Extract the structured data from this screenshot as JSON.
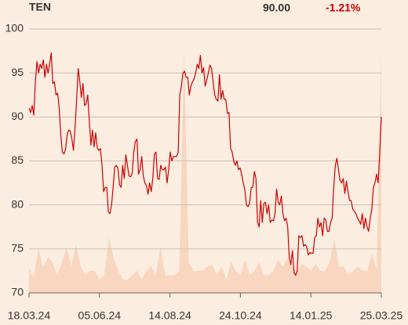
{
  "header": {
    "ticker": "TEN",
    "last": "90.00",
    "change": "-1.21%"
  },
  "chart_data": {
    "type": "line",
    "x_labels": [
      "18.03.24",
      "05.06.24",
      "14.08.24",
      "24.10.24",
      "14.01.25",
      "25.03.25"
    ],
    "ylim": [
      70,
      100
    ],
    "yticks": [
      70,
      75,
      80,
      85,
      90,
      95,
      100
    ],
    "grid": true,
    "series": [
      {
        "name": "Price",
        "color": "#cc0000",
        "values": [
          91,
          90.5,
          91.3,
          90.2,
          94,
          96.3,
          95,
          96,
          95.5,
          96.5,
          94.5,
          96,
          95,
          96,
          97.3,
          93.8,
          94,
          92.5,
          92.7,
          91,
          88,
          86,
          85.8,
          86.3,
          88,
          88.5,
          88.4,
          87.5,
          86.2,
          88.8,
          92,
          95.5,
          94,
          92.2,
          93.8,
          91.3,
          91.5,
          92.5,
          89.5,
          86.8,
          88.5,
          86.6,
          88.2,
          86.5,
          86.2,
          86.4,
          84.5,
          81.5,
          82,
          82,
          79.2,
          79,
          80,
          82,
          84.3,
          84.5,
          84.2,
          82.3,
          82,
          84.5,
          83,
          85.7,
          84.5,
          83.3,
          83.2,
          83.6,
          86,
          87.2,
          87.5,
          83.5,
          84,
          85.5,
          83.3,
          82.5,
          82.2,
          81.2,
          82.5,
          81.5,
          83,
          85.8,
          86,
          83,
          82.9,
          84.5,
          84,
          84,
          84.3,
          82.5,
          84,
          86,
          85,
          85.5,
          85.5,
          85.5,
          86,
          92.5,
          93.5,
          95,
          95.2,
          94.5,
          94.5,
          92.5,
          93.5,
          94,
          94.3,
          95,
          96,
          95.5,
          97,
          95,
          95.6,
          93.5,
          94.2,
          95,
          95.9,
          95.5,
          94,
          92.5,
          92,
          91.8,
          94.8,
          92,
          93,
          92,
          92,
          90.4,
          90.5,
          86.5,
          86,
          85,
          84.5,
          85,
          84,
          84.2,
          83.5,
          82.5,
          81.7,
          80,
          79.8,
          80.2,
          82,
          82,
          83.8,
          83,
          78,
          77.5,
          80.5,
          78,
          80.2,
          80.3,
          79,
          80,
          78,
          78.3,
          78.2,
          79,
          81.8,
          80.3,
          80,
          81,
          79,
          78.2,
          78.5,
          77.5,
          74,
          73.2,
          74.8,
          72.3,
          72,
          72.5,
          76.5,
          76.3,
          76.5,
          75.3,
          75.5,
          75.2,
          74.3,
          74.6,
          74.5,
          74.5,
          76.3,
          76.5,
          78.5,
          77.5,
          78,
          76.5,
          78.5,
          78.3,
          77,
          77,
          78,
          78.5,
          82,
          84.5,
          85.3,
          84,
          82.8,
          82.5,
          83,
          81.3,
          82.7,
          81.5,
          80.5,
          80.5,
          79.5,
          79.3,
          79,
          78.5,
          78.2,
          77.8,
          79,
          77.3,
          78.5,
          77.5,
          77,
          78.5,
          79.5,
          82,
          82.5,
          83.5,
          82.5,
          86,
          90
        ]
      },
      {
        "name": "Volume",
        "color": "#f8d6bf",
        "values": [
          72.7,
          71.8,
          75,
          73,
          74,
          73.5,
          72,
          73.5,
          75.2,
          73,
          75.5,
          73,
          72,
          72.5,
          72.5,
          71.5,
          72,
          76.3,
          74,
          72.5,
          71.5,
          71.5,
          72,
          72.5,
          71.5,
          72.5,
          73,
          72,
          75.3,
          72,
          72,
          72,
          72.5,
          97.5,
          73.5,
          72.5,
          72.5,
          72.5,
          73,
          73.2,
          72,
          73,
          71.5,
          73.5,
          72.5,
          72,
          73.8,
          72,
          72.5,
          73.5,
          72,
          72,
          72.5,
          73.8,
          73,
          74,
          73,
          72.5,
          73.3,
          73,
          72.5,
          73.3,
          72.5,
          72.5,
          73.5,
          76.2,
          73,
          73,
          72,
          72.5,
          73,
          72.5,
          72.5,
          74.5,
          72.5,
          97.5
        ]
      }
    ]
  }
}
